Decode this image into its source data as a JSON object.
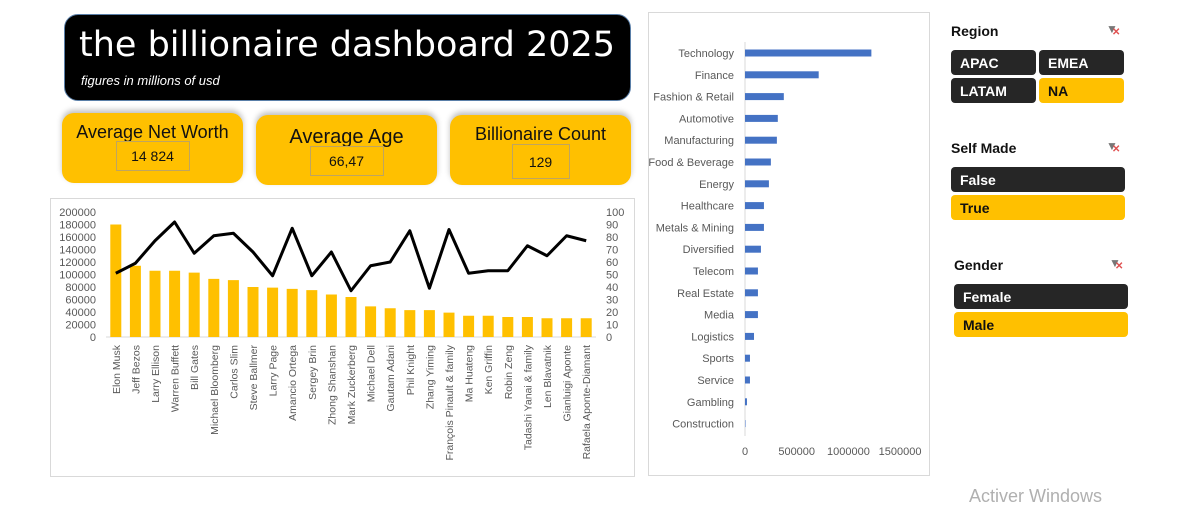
{
  "header": {
    "title": "the billionaire dashboard 2025",
    "subtitle": "figures in millions of usd"
  },
  "kpis": [
    {
      "label": "Average Net Worth",
      "value": "14 824"
    },
    {
      "label": "Average Age",
      "value": "66,47"
    },
    {
      "label": "Billionaire Count",
      "value": "129"
    }
  ],
  "colors": {
    "accent": "#ffc000",
    "dark": "#262626",
    "bar_blue": "#4472c4",
    "line": "#000000"
  },
  "chart_data": [
    {
      "type": "bar+line",
      "categories": [
        "Elon Musk",
        "Jeff Bezos",
        "Larry Ellison",
        "Warren Buffett",
        "Bill Gates",
        "Michael Bloomberg",
        "Carlos Slim",
        "Steve Ballmer",
        "Larry Page",
        "Amancio Ortega",
        "Sergey Brin",
        "Zhong Shanshan",
        "Mark Zuckerberg",
        "Michael Dell",
        "Gautam Adani",
        "Phil Knight",
        "Zhang Yiming",
        "François Pinault & family",
        "Ma Huateng",
        "Ken Griffin",
        "Robin Zeng",
        "Tadashi Yanai & family",
        "Len Blavatnik",
        "Gianluigi Aponte",
        "Rafaela Aponte-Diamant"
      ],
      "series": [
        {
          "type": "bar",
          "axis": "left",
          "values": [
            180000,
            114000,
            106000,
            106000,
            103000,
            93000,
            91000,
            80000,
            79000,
            77000,
            75000,
            68000,
            64000,
            49000,
            46000,
            43000,
            43000,
            39000,
            34000,
            34000,
            32000,
            32000,
            30000,
            30000,
            30000
          ]
        },
        {
          "type": "line",
          "axis": "right",
          "values": [
            51,
            59,
            77,
            92,
            67,
            81,
            83,
            68,
            49,
            87,
            49,
            68,
            37,
            57,
            60,
            85,
            39,
            86,
            51,
            53,
            53,
            73,
            65,
            81,
            77
          ]
        }
      ],
      "ylim_left": [
        0,
        200000
      ],
      "yticks_left": [
        "0",
        "20000",
        "40000",
        "60000",
        "80000",
        "100000",
        "120000",
        "140000",
        "160000",
        "180000",
        "200000"
      ],
      "ylim_right": [
        0,
        100
      ],
      "yticks_right": [
        "0",
        "10",
        "20",
        "30",
        "40",
        "50",
        "60",
        "70",
        "80",
        "90",
        "100"
      ],
      "grid": false,
      "legend": "none"
    },
    {
      "type": "bar",
      "orientation": "horizontal",
      "categories": [
        "Technology",
        "Finance",
        "Fashion & Retail",
        "Automotive",
        "Manufacturing",
        "Food & Beverage",
        "Energy",
        "Healthcare",
        "Metals & Mining",
        "Diversified",
        "Telecom",
        "Real Estate",
        "Media",
        "Logistics",
        "Sports",
        "Service",
        "Gambling",
        "Construction"
      ],
      "values": [
        1221000,
        712000,
        375000,
        317000,
        308000,
        250000,
        231000,
        183000,
        183000,
        154000,
        125000,
        125000,
        125000,
        87000,
        48000,
        48000,
        19000,
        2000
      ],
      "xlim": [
        0,
        1500000
      ],
      "xticks": [
        "0",
        "500000",
        "1000000",
        "1500000"
      ],
      "grid": false,
      "legend": "none"
    }
  ],
  "slicers": {
    "region": {
      "title": "Region",
      "items": [
        {
          "label": "APAC",
          "selected": false
        },
        {
          "label": "EMEA",
          "selected": false
        },
        {
          "label": "LATAM",
          "selected": false
        },
        {
          "label": "NA",
          "selected": true
        }
      ]
    },
    "self_made": {
      "title": "Self Made",
      "items": [
        {
          "label": "False",
          "selected": false
        },
        {
          "label": "True",
          "selected": true
        }
      ]
    },
    "gender": {
      "title": "Gender",
      "items": [
        {
          "label": "Female",
          "selected": false
        },
        {
          "label": "Male",
          "selected": true
        }
      ]
    }
  },
  "watermark": "Activer Windows"
}
